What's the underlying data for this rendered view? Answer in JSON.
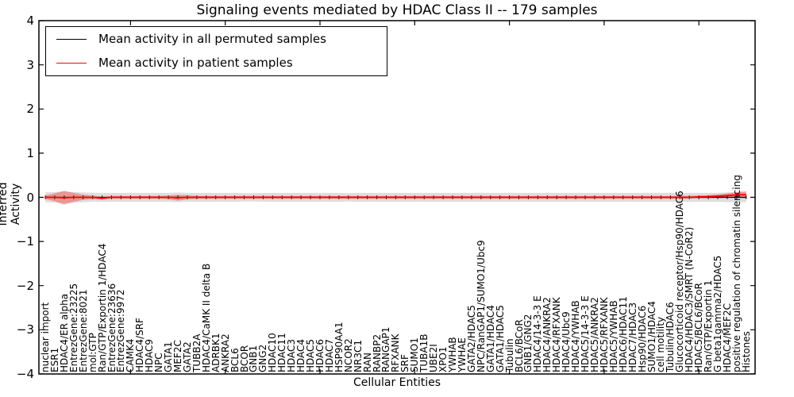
{
  "title": "Signaling events mediated by HDAC Class II -- 179 samples",
  "legend": {
    "items": [
      {
        "label": "Mean activity in all permuted samples",
        "color": "#000000"
      },
      {
        "label": "Mean activity in patient samples",
        "color": "#ff0000"
      }
    ]
  },
  "chart_data": {
    "type": "line",
    "title": "Signaling events mediated by HDAC Class II -- 179 samples",
    "xlabel": "Cellular Entities",
    "ylabel": "Inferred Activity",
    "ylim": [
      -4,
      4
    ],
    "yticks": [
      4,
      3,
      2,
      1,
      0,
      -1,
      -2,
      -3,
      -4
    ],
    "xtick_indices": [
      9,
      19,
      29,
      39,
      49,
      59,
      69
    ],
    "grid": false,
    "legend_position": "upper left",
    "categories": [
      "nuclear import",
      "ESR1",
      "HDAC4/ER alpha",
      "EntrezGene:23225",
      "EntrezGene:8021",
      "mol:GTP",
      "Ran/GTP/Exportin 1/HDAC4",
      "EntrezGene:23636",
      "EntrezGene:9972",
      "CAMK4",
      "HDAC4/SRF",
      "HDAC9",
      "NPC",
      "GATA1",
      "MEF2C",
      "GATA2",
      "TUBB2A",
      "HDAC4/CaMK II delta B",
      "ADRBK1",
      "ANKRA2",
      "BCL6",
      "BCOR",
      "GNB1",
      "GNG2",
      "HDAC10",
      "HDAC11",
      "HDAC3",
      "HDAC4",
      "HDAC5",
      "HDAC6",
      "HDAC7",
      "HSP90AA1",
      "NCOR2",
      "NR3C1",
      "RAN",
      "RANBP2",
      "RANGAP1",
      "RFXANK",
      "SRF",
      "SUMO1",
      "TUBA1B",
      "UBE2I",
      "XPO1",
      "YWHAB",
      "YWHAE",
      "GATA2/HDAC5",
      "NPC/RanGAP1/SUMO1/Ubc9",
      "GATA1/HDAC4",
      "GATA1/HDAC5",
      "Tubulin",
      "BCL6/BCoR",
      "GNB1/GNG2",
      "HDAC4/14-3-3 E",
      "HDAC4/ANKRA2",
      "HDAC4/RFXANK",
      "HDAC4/Ubc9",
      "HDAC4/YWHAB",
      "HDAC5/14-3-3 E",
      "HDAC5/ANKRA2",
      "HDAC5/RFXANK",
      "HDAC5/YWHAB",
      "HDAC6/HDAC11",
      "HDAC7/HDAC3",
      "Hsp90/HDAC6",
      "SUMO1/HDAC4",
      "cell motility",
      "Tubulin/HDAC6",
      "Glucocorticoid receptor/Hsp90/HDAC6",
      "HDAC4/HDAC3/SMRT (N-CoR2)",
      "HDAC5/BCL6/BCoR",
      "Ran/GTP/Exportin 1",
      "G beta1gamma2/HDAC5",
      "HDAC4/MEF2C",
      "positive regulation of chromatin silencing",
      "Histones"
    ],
    "series": [
      {
        "name": "Mean activity in all permuted samples",
        "color": "#000000",
        "values": [
          0,
          0,
          0,
          0,
          0,
          0,
          0,
          0,
          0,
          0,
          0,
          0,
          0,
          0,
          0,
          0,
          0,
          0,
          0,
          0,
          0,
          0,
          0,
          0,
          0,
          0,
          0,
          0,
          0,
          0,
          0,
          0,
          0,
          0,
          0,
          0,
          0,
          0,
          0,
          0,
          0,
          0,
          0,
          0,
          0,
          0,
          0,
          0,
          0,
          0,
          0,
          0,
          0,
          0,
          0,
          0,
          0,
          0,
          0,
          0,
          0,
          0,
          0,
          0,
          0,
          0,
          0,
          0,
          0,
          0,
          0,
          0,
          0,
          0,
          0
        ],
        "band_halfwidth": [
          0.11,
          0.12,
          0.13,
          0.12,
          0.11,
          0.1,
          0.1,
          0.1,
          0.1,
          0.1,
          0.1,
          0.1,
          0.1,
          0.1,
          0.11,
          0.1,
          0.1,
          0.1,
          0.1,
          0.1,
          0.1,
          0.095,
          0.095,
          0.1,
          0.1,
          0.1,
          0.1,
          0.1,
          0.1,
          0.1,
          0.1,
          0.1,
          0.095,
          0.1,
          0.1,
          0.1,
          0.1,
          0.1,
          0.1,
          0.1,
          0.1,
          0.1,
          0.1,
          0.1,
          0.1,
          0.1,
          0.105,
          0.1,
          0.1,
          0.1,
          0.1,
          0.1,
          0.1,
          0.1,
          0.1,
          0.1,
          0.1,
          0.1,
          0.1,
          0.1,
          0.1,
          0.1,
          0.1,
          0.1,
          0.105,
          0.1,
          0.1,
          0.1,
          0.1,
          0.1,
          0.1,
          0.1,
          0.11,
          0.11,
          0.11
        ]
      },
      {
        "name": "Mean activity in patient samples",
        "color": "#ff0000",
        "values": [
          0,
          0,
          -0.01,
          0,
          0,
          0,
          -0.02,
          0,
          0,
          0,
          0,
          0,
          0,
          0,
          -0.01,
          0,
          0,
          0,
          0,
          0,
          0,
          0,
          0,
          0,
          0,
          0,
          0,
          0,
          0,
          0,
          0,
          0,
          0,
          0,
          0,
          0,
          0,
          0,
          0,
          0,
          0,
          0,
          0,
          0,
          0,
          0,
          0,
          0,
          0,
          0,
          0,
          0,
          0,
          0,
          0,
          0,
          0,
          0,
          0,
          0,
          0,
          0,
          0,
          0,
          0,
          0,
          0,
          0,
          0,
          0.01,
          0.015,
          0.025,
          0.04,
          0.055,
          0.06
        ],
        "band_halfwidth": [
          0.04,
          0.09,
          0.155,
          0.1,
          0.06,
          0.04,
          0.03,
          0.03,
          0.03,
          0.03,
          0.03,
          0.03,
          0.03,
          0.04,
          0.065,
          0.045,
          0.035,
          0.03,
          0.03,
          0.03,
          0.03,
          0.03,
          0.03,
          0.03,
          0.03,
          0.03,
          0.03,
          0.03,
          0.03,
          0.03,
          0.03,
          0.03,
          0.03,
          0.03,
          0.03,
          0.03,
          0.03,
          0.03,
          0.03,
          0.03,
          0.03,
          0.03,
          0.03,
          0.03,
          0.03,
          0.03,
          0.035,
          0.03,
          0.03,
          0.03,
          0.03,
          0.03,
          0.03,
          0.03,
          0.03,
          0.03,
          0.03,
          0.03,
          0.03,
          0.03,
          0.03,
          0.03,
          0.03,
          0.03,
          0.035,
          0.03,
          0.03,
          0.03,
          0.03,
          0.03,
          0.035,
          0.04,
          0.05,
          0.065,
          0.08
        ]
      }
    ]
  }
}
